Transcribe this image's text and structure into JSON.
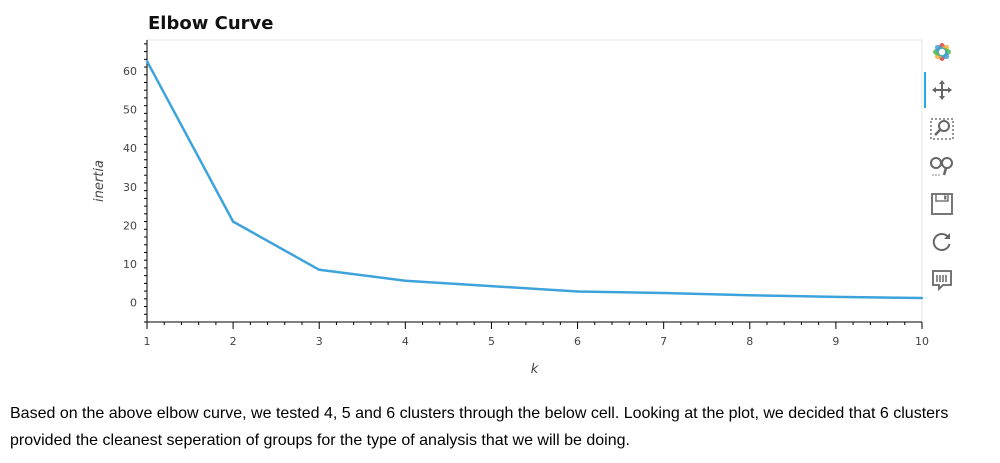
{
  "chart_data": {
    "type": "line",
    "title": "Elbow Curve",
    "xlabel": "k",
    "ylabel": "inertia",
    "x": [
      1,
      2,
      3,
      4,
      5,
      6,
      7,
      8,
      9,
      10
    ],
    "series": [
      {
        "values": [
          62.5,
          21,
          8.5,
          5.7,
          4.3,
          2.9,
          2.5,
          1.9,
          1.5,
          1.2
        ],
        "color": "#3ea3da"
      }
    ],
    "xlim": [
      1,
      10
    ],
    "ylim": [
      -5,
      68
    ],
    "xticks": [
      1,
      2,
      3,
      4,
      5,
      6,
      7,
      8,
      9,
      10
    ],
    "yticks": [
      0,
      10,
      20,
      30,
      40,
      50,
      60
    ],
    "grid": false
  },
  "toolbar": {
    "tools": [
      "bokeh-logo-icon",
      "pan-icon",
      "box-zoom-icon",
      "wheel-zoom-icon",
      "save-icon",
      "reset-icon",
      "hover-icon"
    ],
    "accent": "#26aae1"
  },
  "caption": "Based on the above elbow curve, we tested 4, 5 and 6 clusters through the below cell. Looking at the plot, we decided that 6 clusters provided the cleanest seperation of groups for the type of analysis that we will be doing."
}
